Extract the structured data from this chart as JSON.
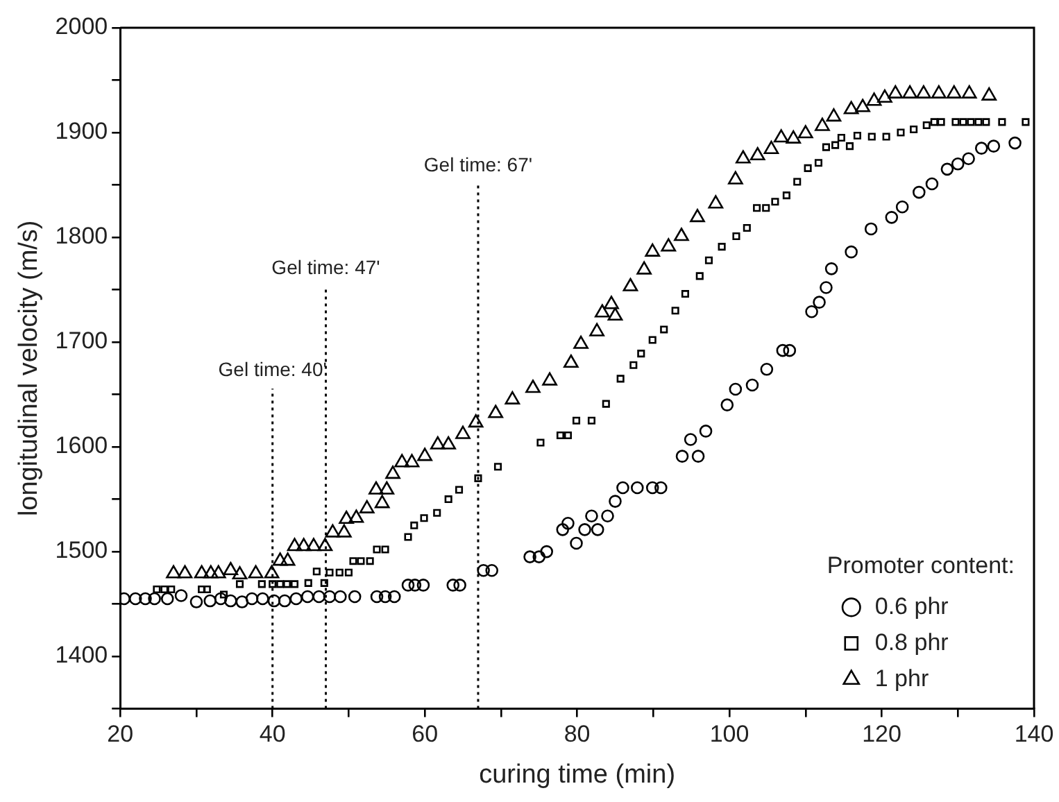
{
  "chart_data": {
    "type": "scatter",
    "xlabel": "curing time (min)",
    "ylabel": "longitudinal velocity (m/s)",
    "legend_title": "Promoter content:",
    "legend": "bottom right",
    "grid": false,
    "xlim": [
      20,
      140
    ],
    "xticks": [
      20,
      {
        "value": 30,
        "label": null
      },
      40,
      {
        "value": 50,
        "label": null
      },
      60,
      {
        "value": 70,
        "label": null
      },
      80,
      {
        "value": 90,
        "label": null
      },
      100,
      {
        "value": 110,
        "label": null
      },
      120,
      {
        "value": 130,
        "label": null
      },
      140
    ],
    "ylim": [
      1350,
      2000
    ],
    "yticks": [
      {
        "value": 1350,
        "label": null
      },
      1400,
      {
        "value": 1450,
        "label": null
      },
      1500,
      {
        "value": 1550,
        "label": null
      },
      1600,
      {
        "value": 1650,
        "label": null
      },
      1700,
      {
        "value": 1750,
        "label": null
      },
      1800,
      {
        "value": 1850,
        "label": null
      },
      1900,
      {
        "value": 1950,
        "label": null
      },
      2000
    ],
    "ref_lines": [
      {
        "axis": "x",
        "value": 40,
        "label": "Gel time: 40'",
        "line_style": "dotted"
      },
      {
        "axis": "x",
        "value": 47,
        "label": "Gel time: 47'",
        "line_style": "dotted"
      },
      {
        "axis": "x",
        "value": 67,
        "label": "Gel time: 67'",
        "line_style": "dotted"
      }
    ],
    "series": [
      {
        "name": "0.6 phr",
        "color": "#000000",
        "marker": "circle",
        "x": [
          20.5,
          22,
          23.3,
          24.5,
          26.2,
          28,
          30,
          31.8,
          33.2,
          34.5,
          36,
          37.3,
          38.7,
          40.2,
          41.6,
          43.1,
          44.6,
          46.1,
          47.5,
          48.9,
          50.8,
          53.7,
          54.8,
          56,
          57.8,
          58.7,
          59.8,
          63.7,
          64.6,
          67.7,
          68.8,
          73.8,
          75,
          76,
          78.1,
          78.8,
          79.9,
          81,
          81.9,
          82.7,
          84,
          85,
          86,
          87.9,
          89.9,
          91,
          93.8,
          94.9,
          95.9,
          96.9,
          99.7,
          100.8,
          103,
          104.9,
          107,
          107.9,
          110.8,
          111.8,
          112.7,
          113.4,
          116,
          118.6,
          121.3,
          122.7,
          124.9,
          126.6,
          128.6,
          130,
          131.4,
          133.1,
          134.7,
          137.5
        ],
        "values": [
          1455,
          1455,
          1455,
          1455,
          1455,
          1458,
          1452,
          1453,
          1455,
          1453,
          1452,
          1455,
          1455,
          1453,
          1453,
          1455,
          1457,
          1457,
          1457,
          1457,
          1457,
          1457,
          1457,
          1457,
          1468,
          1468,
          1468,
          1468,
          1468,
          1482,
          1482,
          1495,
          1495,
          1500,
          1521,
          1527,
          1508,
          1521,
          1534,
          1521,
          1534,
          1548,
          1561,
          1561,
          1561,
          1561,
          1591,
          1607,
          1591,
          1615,
          1640,
          1655,
          1659,
          1674,
          1692,
          1692,
          1729,
          1738,
          1752,
          1770,
          1786,
          1808,
          1819,
          1829,
          1843,
          1851,
          1865,
          1870,
          1875,
          1885,
          1887,
          1890
        ]
      },
      {
        "name": "0.8 phr",
        "color": "#000000",
        "marker": "square",
        "x": [
          24.8,
          25.8,
          26.7,
          30.7,
          31.4,
          33.6,
          35.7,
          38.6,
          40,
          41,
          41.9,
          42.9,
          44.7,
          45.8,
          46.8,
          47.5,
          48.8,
          50,
          50.6,
          51.6,
          52.8,
          53.7,
          54.8,
          57.8,
          58.6,
          59.9,
          61.6,
          63.1,
          64.5,
          67,
          69.6,
          75.2,
          77.8,
          78.8,
          79.9,
          81.9,
          83.8,
          85.7,
          87.4,
          88.4,
          89.9,
          91.4,
          92.9,
          94.2,
          96.1,
          97.3,
          99,
          100.9,
          102.3,
          103.6,
          104.8,
          106,
          107.5,
          108.9,
          110.3,
          111.7,
          112.7,
          113.9,
          114.7,
          115.8,
          116.8,
          118.7,
          120.6,
          122.5,
          124.2,
          125.9,
          126.9,
          127.8,
          129.7,
          130.7,
          131.7,
          132.7,
          133.7,
          135.8,
          138.9
        ],
        "values": [
          1464,
          1464,
          1464,
          1464,
          1464,
          1459,
          1469,
          1469,
          1469,
          1469,
          1469,
          1469,
          1470,
          1481,
          1470,
          1480,
          1480,
          1480,
          1491,
          1491,
          1491,
          1502,
          1502,
          1514,
          1525,
          1532,
          1537,
          1550,
          1559,
          1570,
          1581,
          1604,
          1611,
          1611,
          1625,
          1625,
          1641,
          1665,
          1678,
          1689,
          1702,
          1712,
          1730,
          1746,
          1763,
          1778,
          1791,
          1801,
          1809,
          1828,
          1828,
          1834,
          1840,
          1853,
          1866,
          1871,
          1886,
          1888,
          1895,
          1887,
          1897,
          1896,
          1896,
          1900,
          1903,
          1907,
          1910,
          1910,
          1910,
          1910,
          1910,
          1910,
          1910,
          1910,
          1910
        ]
      },
      {
        "name": "1 phr",
        "color": "#000000",
        "marker": "triangle",
        "x": [
          27,
          28.5,
          30.7,
          31.9,
          32.9,
          34.5,
          35.7,
          37.8,
          39.9,
          41,
          42,
          42.9,
          44.1,
          45.4,
          46.9,
          47.9,
          49.4,
          49.7,
          51,
          52.4,
          53.6,
          54.4,
          55,
          55.8,
          57,
          58.3,
          60,
          61.7,
          63.1,
          65,
          66.7,
          69.3,
          71.5,
          74.2,
          76.4,
          79.2,
          80.5,
          82.6,
          83.3,
          84.5,
          85,
          87,
          88.8,
          89.9,
          92,
          93.7,
          95.8,
          98.2,
          100.8,
          101.8,
          103.7,
          105.5,
          106.8,
          108.4,
          110,
          112.2,
          113.7,
          116,
          117.5,
          119,
          120.4,
          121.8,
          123.7,
          125.5,
          127.5,
          129.5,
          131.5,
          134.1
        ],
        "values": [
          1479,
          1479,
          1479,
          1479,
          1479,
          1482,
          1478,
          1479,
          1479,
          1491,
          1491,
          1505,
          1505,
          1505,
          1505,
          1518,
          1518,
          1531,
          1532,
          1541,
          1559,
          1546,
          1559,
          1574,
          1585,
          1585,
          1591,
          1602,
          1602,
          1612,
          1623,
          1632,
          1645,
          1656,
          1663,
          1680,
          1698,
          1710,
          1728,
          1736,
          1725,
          1753,
          1769,
          1786,
          1791,
          1801,
          1819,
          1832,
          1855,
          1875,
          1878,
          1884,
          1895,
          1894,
          1899,
          1906,
          1915,
          1922,
          1924,
          1930,
          1933,
          1937,
          1937,
          1937,
          1937,
          1937,
          1937,
          1935
        ]
      }
    ]
  }
}
